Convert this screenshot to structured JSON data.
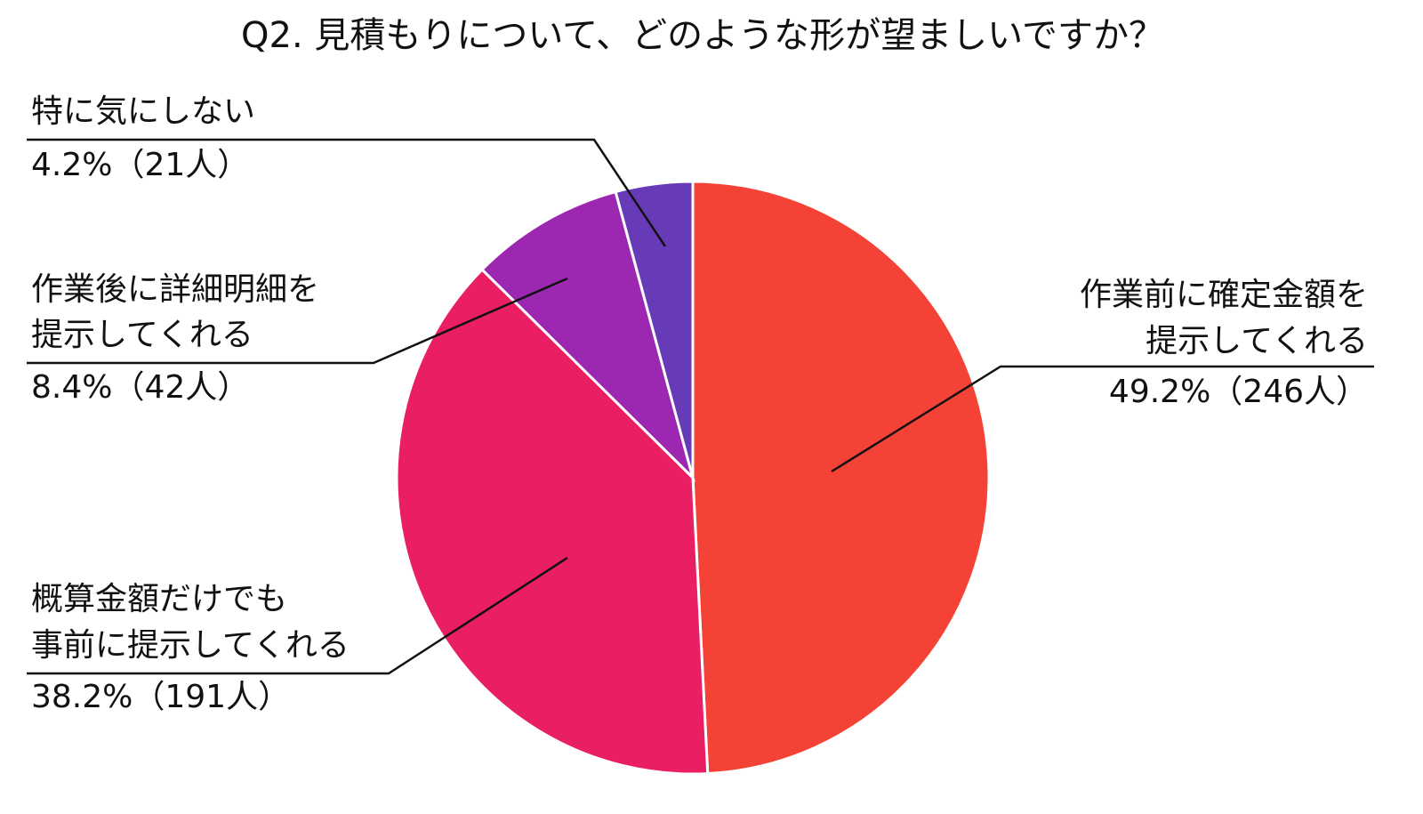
{
  "chart_data": {
    "type": "pie",
    "title": "Q2. 見積もりについて、どのような形が望ましいですか？",
    "categories": [
      [
        "作業前に確定金額を",
        "提示してくれる"
      ],
      [
        "概算金額だけでも",
        "事前に提示してくれる"
      ],
      [
        "作業後に詳細明細を",
        "提示してくれる"
      ],
      [
        "特に気にしない"
      ]
    ],
    "values": [
      49.2,
      38.2,
      8.4,
      4.2
    ],
    "value_labels": [
      "49.2%（246人）",
      "38.2%（191人）",
      "8.4%（42人）",
      "4.2%（21人）"
    ],
    "colors": [
      "#f44336",
      "#e91e63",
      "#9c27b0",
      "#673ab7"
    ]
  }
}
